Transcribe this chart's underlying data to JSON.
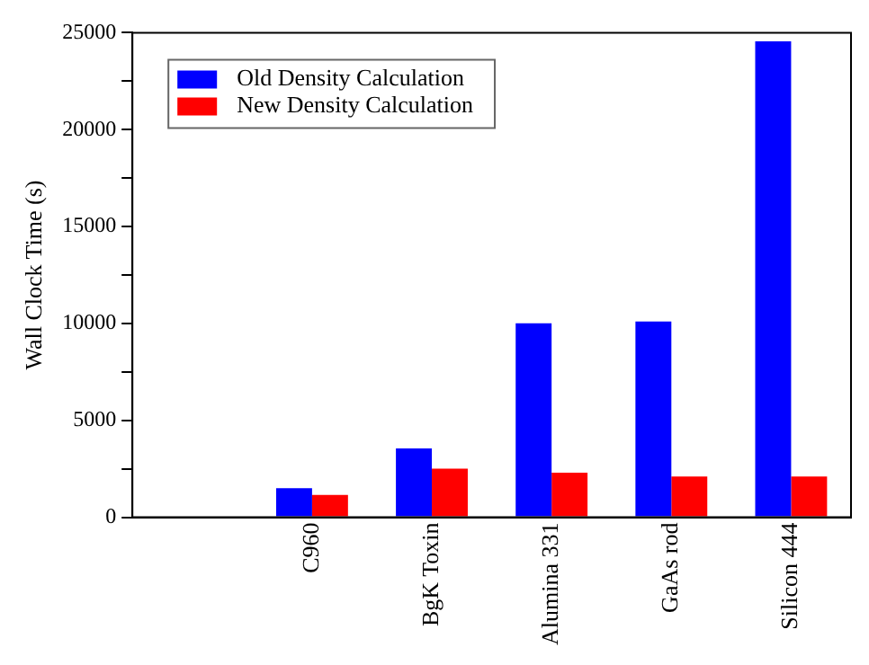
{
  "chart_data": {
    "type": "bar",
    "ylabel": "Wall Clock Time (s)",
    "categories": [
      null,
      "C960",
      "BgK Toxin",
      "Alumina 331",
      "GaAs rod",
      "Silicon 444"
    ],
    "series": [
      {
        "name": "Old Density Calculation",
        "color": "#0000ff",
        "values": [
          null,
          1500,
          3550,
          10000,
          10100,
          24550
        ]
      },
      {
        "name": "New Density Calculation",
        "color": "#ff0000",
        "values": [
          null,
          1150,
          2500,
          2300,
          2100,
          2100
        ]
      }
    ],
    "ylim": [
      0,
      25000
    ],
    "yticks": [
      0,
      {
        "value": 2500,
        "label": null
      },
      5000,
      {
        "value": 7500,
        "label": null
      },
      10000,
      {
        "value": 12500,
        "label": null
      },
      15000,
      {
        "value": 17500,
        "label": null
      },
      20000,
      {
        "value": 22500,
        "label": null
      },
      25000
    ],
    "grid": false,
    "legend": "top left"
  }
}
